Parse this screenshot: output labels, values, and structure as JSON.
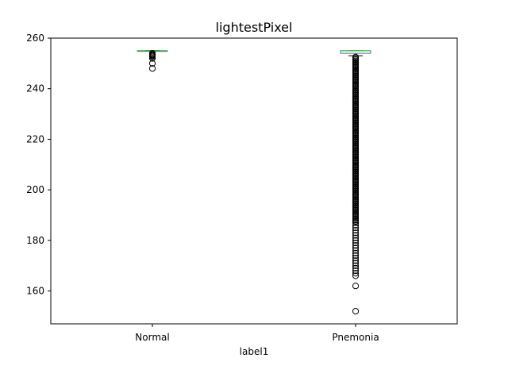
{
  "chart_data": {
    "type": "box",
    "title": "lightestPixel",
    "xlabel": "label1",
    "ylabel": "",
    "categories": [
      "Normal",
      "Pnemonia"
    ],
    "ylim": [
      147,
      260
    ],
    "yticks": [
      160,
      180,
      200,
      220,
      240,
      260
    ],
    "grid": false,
    "colors": {
      "box": "#4c72b0",
      "median": "#2ca02c",
      "outlier": "#000000"
    },
    "boxes": [
      {
        "category": "Normal",
        "q1": 255,
        "median": 255,
        "q3": 255,
        "whisker_low": 255,
        "whisker_high": 255,
        "outliers": [
          254,
          253.6,
          253.3,
          253,
          252.6,
          252,
          250,
          248
        ]
      },
      {
        "category": "Pnemonia",
        "q1": 254,
        "median": 255,
        "q3": 255,
        "whisker_low": 253,
        "whisker_high": 255,
        "outliers": [
          252.5,
          252,
          251.5,
          251,
          250.5,
          250,
          249.5,
          249,
          248.5,
          248,
          247.5,
          247,
          246.5,
          246,
          245.5,
          245,
          244.5,
          244,
          243.5,
          243,
          242.5,
          242,
          241.5,
          241,
          240.5,
          240,
          239.5,
          239,
          238.5,
          238,
          237.5,
          237,
          236.5,
          236,
          235.5,
          235,
          234.5,
          234,
          233.5,
          233,
          232.5,
          232,
          231.5,
          231,
          230.5,
          230,
          229.5,
          229,
          228.5,
          228,
          227.5,
          227,
          226.5,
          226,
          225.5,
          225,
          224.5,
          224,
          223.5,
          223,
          222.5,
          222,
          221.5,
          221,
          220.5,
          220,
          219.5,
          219,
          218.5,
          218,
          217.5,
          217,
          216.5,
          216,
          215.5,
          215,
          214.5,
          214,
          213.5,
          213,
          212.5,
          212,
          211.5,
          211,
          210.5,
          210,
          209.5,
          209,
          208.5,
          208,
          207.5,
          207,
          206.5,
          206,
          205.5,
          205,
          204.5,
          204,
          203.5,
          203,
          202.5,
          202,
          201.5,
          201,
          200.5,
          200,
          199.5,
          199,
          198.5,
          198,
          197.5,
          197,
          196.5,
          196,
          195.5,
          195,
          194.5,
          194,
          193.5,
          193,
          192.5,
          192,
          191.5,
          191,
          190.5,
          190,
          189.5,
          189,
          188.5,
          188,
          187.5,
          187,
          186,
          185,
          184,
          183,
          182,
          181,
          180,
          179,
          178,
          177,
          176,
          175,
          174,
          173,
          172,
          171,
          170,
          169,
          168,
          167,
          166,
          162,
          152
        ]
      }
    ]
  }
}
